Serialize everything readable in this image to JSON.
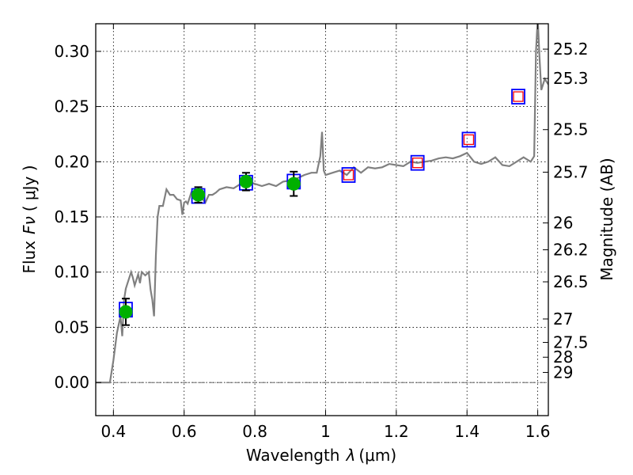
{
  "chart_data": {
    "type": "scatter",
    "title": "",
    "xlabel": "Wavelength",
    "xlabel_symbol": "λ",
    "xlabel_unit": "(μm)",
    "ylabel": "Flux",
    "ylabel_symbol": "Fν",
    "ylabel_unit": "( μJy )",
    "y2label": "Magnitude (AB)",
    "xlim": [
      0.35,
      1.63
    ],
    "ylim": [
      -0.03,
      0.325
    ],
    "grid": true,
    "x_ticks": [
      0.4,
      0.6,
      0.8,
      1.0,
      1.2,
      1.4,
      1.6
    ],
    "x_tick_labels": [
      "0.4",
      "0.6",
      "0.8",
      "1",
      "1.2",
      "1.4",
      "1.6"
    ],
    "y_ticks": [
      0.0,
      0.05,
      0.1,
      0.15,
      0.2,
      0.25,
      0.3
    ],
    "y_tick_labels": [
      "0.00",
      "0.05",
      "0.10",
      "0.15",
      "0.20",
      "0.25",
      "0.30"
    ],
    "mag_ticks": [
      {
        "mag": 25.2,
        "label": "25.2"
      },
      {
        "mag": 25.3,
        "label": "25.3"
      },
      {
        "mag": 25.5,
        "label": "25.5"
      },
      {
        "mag": 25.7,
        "label": "25.7"
      },
      {
        "mag": 26.0,
        "label": "26"
      },
      {
        "mag": 26.2,
        "label": "26.2"
      },
      {
        "mag": 26.5,
        "label": "26.5"
      },
      {
        "mag": 27.0,
        "label": "27"
      },
      {
        "mag": 27.5,
        "label": "27.5"
      },
      {
        "mag": 28.0,
        "label": "28"
      },
      {
        "mag": 29.0,
        "label": "29"
      }
    ],
    "series": [
      {
        "kind": "spectrum",
        "color": "#808080",
        "x": [
          0.35,
          0.39,
          0.4,
          0.41,
          0.42,
          0.425,
          0.43,
          0.435,
          0.44,
          0.45,
          0.455,
          0.46,
          0.47,
          0.475,
          0.48,
          0.49,
          0.5,
          0.505,
          0.51,
          0.515,
          0.52,
          0.525,
          0.53,
          0.54,
          0.55,
          0.56,
          0.57,
          0.58,
          0.59,
          0.595,
          0.6,
          0.605,
          0.61,
          0.62,
          0.63,
          0.64,
          0.65,
          0.66,
          0.67,
          0.68,
          0.69,
          0.7,
          0.72,
          0.74,
          0.76,
          0.78,
          0.8,
          0.82,
          0.84,
          0.86,
          0.88,
          0.9,
          0.92,
          0.94,
          0.96,
          0.975,
          0.985,
          0.99,
          0.995,
          1.0,
          1.02,
          1.04,
          1.06,
          1.08,
          1.1,
          1.12,
          1.14,
          1.16,
          1.18,
          1.2,
          1.22,
          1.24,
          1.26,
          1.28,
          1.3,
          1.32,
          1.34,
          1.36,
          1.38,
          1.4,
          1.42,
          1.44,
          1.46,
          1.48,
          1.5,
          1.52,
          1.54,
          1.56,
          1.58,
          1.59,
          1.595,
          1.6,
          1.605,
          1.61,
          1.615,
          1.62,
          1.63
        ],
        "y": [
          0.0,
          0.0,
          0.02,
          0.045,
          0.06,
          0.042,
          0.075,
          0.085,
          0.09,
          0.1,
          0.095,
          0.088,
          0.098,
          0.09,
          0.1,
          0.097,
          0.1,
          0.084,
          0.075,
          0.06,
          0.115,
          0.15,
          0.16,
          0.16,
          0.175,
          0.17,
          0.17,
          0.166,
          0.165,
          0.152,
          0.163,
          0.164,
          0.162,
          0.172,
          0.169,
          0.17,
          0.167,
          0.163,
          0.17,
          0.17,
          0.172,
          0.175,
          0.177,
          0.176,
          0.18,
          0.182,
          0.18,
          0.178,
          0.18,
          0.178,
          0.182,
          0.183,
          0.185,
          0.188,
          0.19,
          0.19,
          0.205,
          0.227,
          0.192,
          0.188,
          0.19,
          0.192,
          0.188,
          0.195,
          0.19,
          0.195,
          0.194,
          0.195,
          0.198,
          0.197,
          0.196,
          0.2,
          0.199,
          0.2,
          0.201,
          0.203,
          0.204,
          0.203,
          0.205,
          0.208,
          0.2,
          0.198,
          0.2,
          0.204,
          0.197,
          0.196,
          0.2,
          0.204,
          0.2,
          0.205,
          0.3,
          0.33,
          0.295,
          0.265,
          0.27,
          0.275,
          0.27
        ]
      },
      {
        "kind": "model-squares",
        "edge_color": "#0000ff",
        "x": [
          0.435,
          0.64,
          0.775,
          0.91,
          1.065,
          1.26,
          1.405,
          1.545
        ],
        "y": [
          0.066,
          0.169,
          0.181,
          0.182,
          0.188,
          0.199,
          0.22,
          0.259
        ]
      },
      {
        "kind": "upper-limit-squares",
        "edge_color": "#ff0000",
        "x": [
          1.065,
          1.26,
          1.405,
          1.545
        ],
        "y": [
          0.188,
          0.199,
          0.22,
          0.259
        ]
      },
      {
        "kind": "observed",
        "color": "#00b000",
        "x": [
          0.435,
          0.64,
          0.775,
          0.91
        ],
        "y": [
          0.064,
          0.17,
          0.182,
          0.18
        ],
        "yerr": [
          0.012,
          0.007,
          0.008,
          0.011
        ]
      }
    ]
  }
}
